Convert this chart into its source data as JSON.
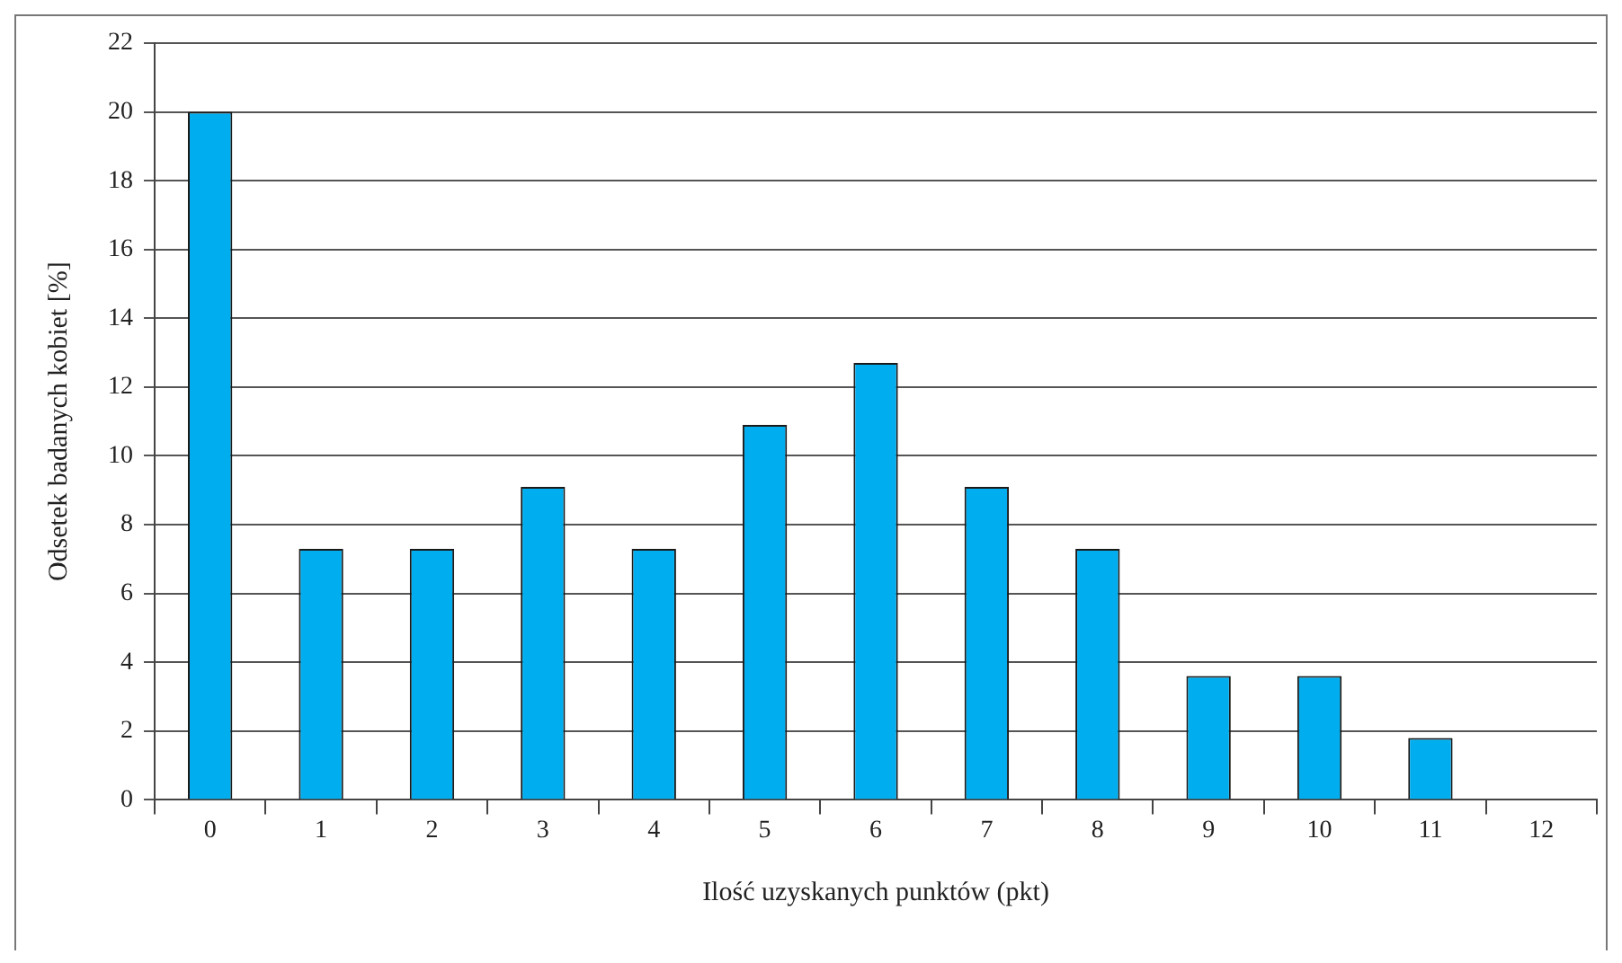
{
  "chart_data": {
    "type": "bar",
    "xlabel": "Ilość uzyskanych punktów (pkt)",
    "ylabel": "Odsetek badanych kobiet [%]",
    "categories": [
      "0",
      "1",
      "2",
      "3",
      "4",
      "5",
      "6",
      "7",
      "8",
      "9",
      "10",
      "11",
      "12"
    ],
    "values": [
      20,
      7.3,
      7.3,
      9.1,
      7.3,
      10.9,
      12.7,
      9.1,
      7.3,
      3.6,
      3.6,
      1.8,
      0
    ],
    "color": "#00aeef",
    "ylim": [
      0,
      22
    ],
    "yticks": [
      0,
      2,
      4,
      6,
      8,
      10,
      12,
      14,
      16,
      18,
      20,
      22
    ],
    "grid": "y",
    "legend": false
  }
}
